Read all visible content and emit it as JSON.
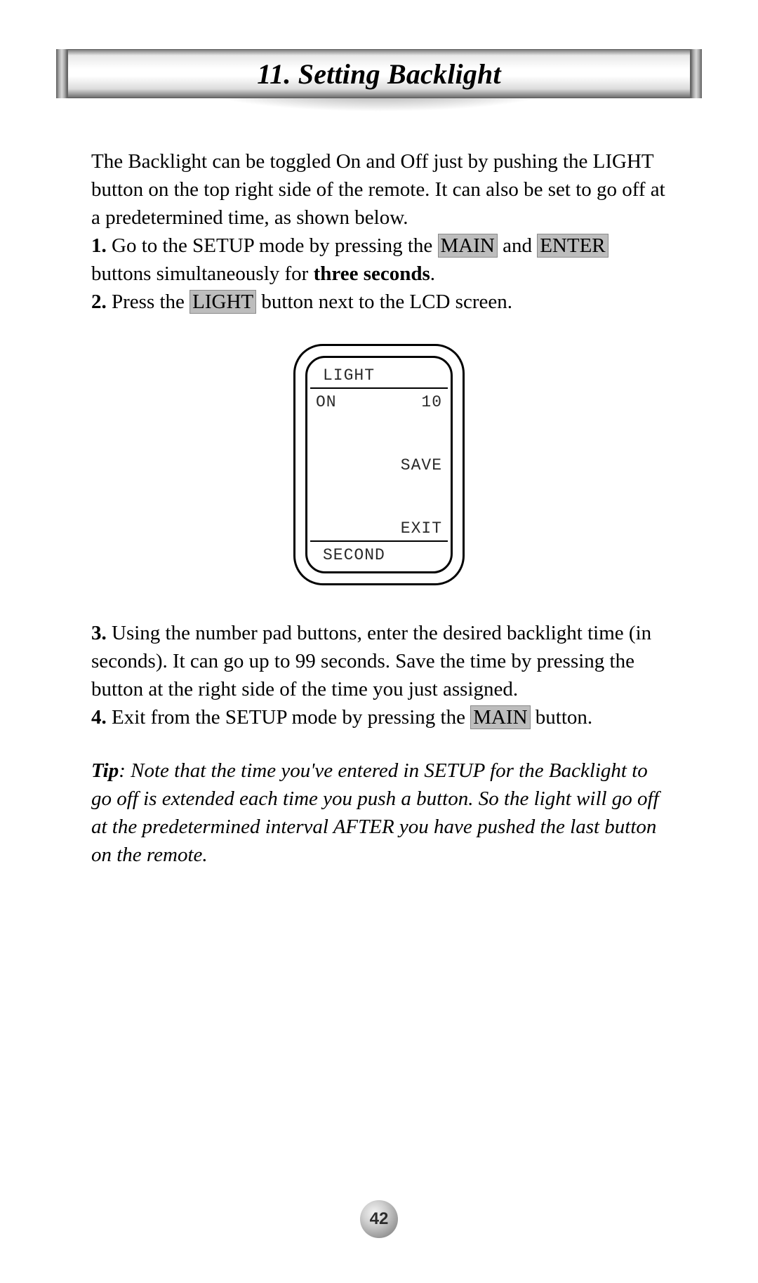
{
  "header": {
    "title": "11. Setting Backlight"
  },
  "intro": "The Backlight can be toggled On and Off just by pushing the LIGHT button on the top right side of the remote. It can also be set to go off at a predetermined time, as shown below.",
  "steps": {
    "s1": {
      "num": "1.",
      "pre": " Go to the SETUP mode by pressing the ",
      "btn1": "MAIN",
      "mid": " and ",
      "btn2": "ENTER",
      "post": " buttons simultaneously for ",
      "bold": "three seconds",
      "end": "."
    },
    "s2": {
      "num": "2.",
      "pre": " Press the ",
      "btn1": "LIGHT",
      "post": " button next to the LCD screen."
    },
    "s3": {
      "num": "3.",
      "text": " Using the number pad buttons, enter the desired backlight time (in seconds). It can go up to 99 seconds. Save the time by pressing the button at the right side of the time you just assigned."
    },
    "s4": {
      "num": "4.",
      "pre": " Exit from the SETUP mode by pressing the ",
      "btn1": "MAIN",
      "post": " button."
    }
  },
  "lcd": {
    "title": "LIGHT",
    "on_label": "ON",
    "on_value": "10",
    "save": "SAVE",
    "exit": "EXIT",
    "second": "SECOND"
  },
  "tip": {
    "label": "Tip",
    "text": ": Note that the time you've entered in SETUP for the Backlight to go off is extended each time you push a button. So the light will go off at the predetermined interval AFTER you have pushed the last button on the remote."
  },
  "page_number": "42",
  "colors": {
    "highlight_bg": "#bdbdbd",
    "highlight_border": "#8a8a8a",
    "text": "#000000",
    "background": "#ffffff"
  }
}
